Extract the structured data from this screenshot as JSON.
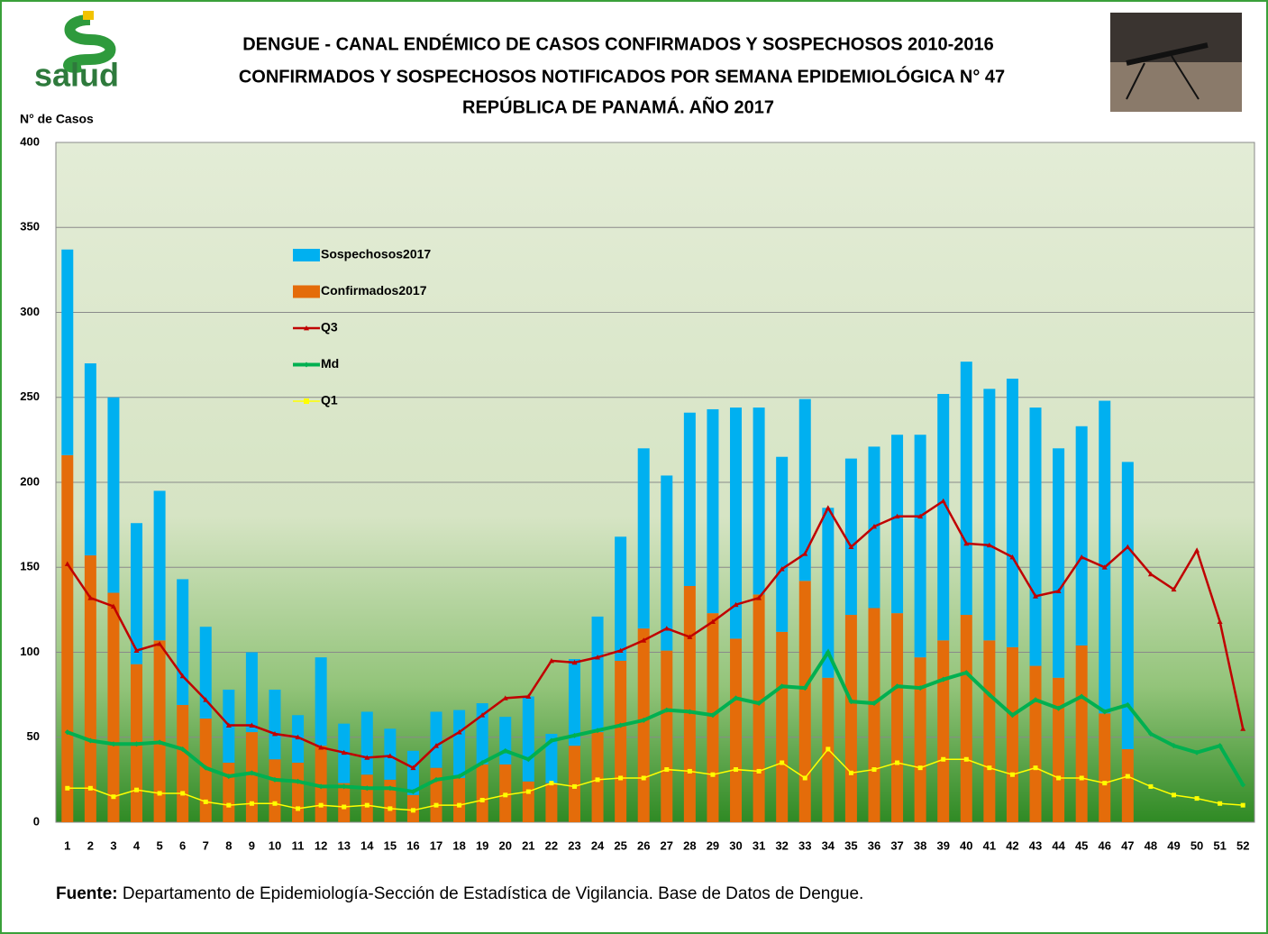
{
  "logo_text": "salud",
  "chart_data": {
    "type": "bar",
    "title": [
      "DENGUE - CANAL ENDÉMICO DE CASOS CONFIRMADOS Y SOSPECHOSOS 2010-2016",
      "CONFIRMADOS Y SOSPECHOSOS NOTIFICADOS POR SEMANA EPIDEMIOLÓGICA N° 47",
      "REPÚBLICA DE PANAMÁ. AÑO 2017"
    ],
    "y_label": "N° de Casos",
    "source_label": "Fuente:",
    "source": "Departamento de Epidemiología-Sección de Estadística de Vigilancia. Base de Datos de Dengue.",
    "categories": [
      "1",
      "2",
      "3",
      "4",
      "5",
      "6",
      "7",
      "8",
      "9",
      "10",
      "11",
      "12",
      "13",
      "14",
      "15",
      "16",
      "17",
      "18",
      "19",
      "20",
      "21",
      "22",
      "23",
      "24",
      "25",
      "26",
      "27",
      "28",
      "29",
      "30",
      "31",
      "32",
      "33",
      "34",
      "35",
      "36",
      "37",
      "38",
      "39",
      "40",
      "41",
      "42",
      "43",
      "44",
      "45",
      "46",
      "47",
      "48",
      "49",
      "50",
      "51",
      "52"
    ],
    "ylim": [
      0,
      400
    ],
    "yticks": [
      0,
      50,
      100,
      150,
      200,
      250,
      300,
      350,
      400
    ],
    "grid": true,
    "series": [
      {
        "name": "Confirmados2017",
        "kind": "bar",
        "color": "#e46c0a",
        "values": [
          216,
          157,
          135,
          93,
          107,
          69,
          61,
          35,
          53,
          37,
          35,
          45,
          23,
          28,
          25,
          16,
          32,
          26,
          34,
          34,
          24,
          23,
          45,
          53,
          95,
          114,
          101,
          139,
          123,
          108,
          134,
          112,
          142,
          85,
          122,
          126,
          123,
          97,
          107,
          122,
          107,
          103,
          92,
          85,
          104,
          64,
          43,
          null,
          null,
          null,
          null,
          null
        ]
      },
      {
        "name": "Sospechosos2017",
        "kind": "bar",
        "color": "#00b0f0",
        "values": [
          121,
          113,
          115,
          83,
          88,
          74,
          54,
          43,
          47,
          41,
          28,
          52,
          35,
          37,
          30,
          26,
          33,
          40,
          36,
          28,
          50,
          29,
          51,
          68,
          73,
          106,
          103,
          102,
          120,
          136,
          110,
          103,
          107,
          100,
          92,
          95,
          105,
          131,
          145,
          149,
          148,
          158,
          152,
          135,
          129,
          184,
          169,
          null,
          null,
          null,
          null,
          null
        ]
      },
      {
        "name": "Q3",
        "kind": "line",
        "marker": "triangle",
        "color": "#c00000",
        "values": [
          152,
          132,
          127,
          101,
          105,
          86,
          72,
          57,
          57,
          52,
          50,
          44,
          41,
          38,
          39,
          32,
          45,
          53,
          63,
          73,
          74,
          95,
          94,
          97,
          101,
          107,
          114,
          109,
          118,
          128,
          132,
          149,
          158,
          185,
          162,
          174,
          180,
          180,
          189,
          164,
          163,
          156,
          133,
          136,
          156,
          150,
          162,
          146,
          137,
          160,
          118,
          55
        ]
      },
      {
        "name": "Md",
        "kind": "line",
        "marker": "diamond",
        "color": "#00b050",
        "values": [
          53,
          48,
          46,
          46,
          47,
          43,
          32,
          27,
          29,
          25,
          24,
          21,
          21,
          20,
          20,
          18,
          25,
          27,
          35,
          42,
          37,
          48,
          51,
          54,
          57,
          60,
          66,
          65,
          63,
          73,
          70,
          80,
          79,
          100,
          71,
          70,
          80,
          79,
          84,
          88,
          75,
          63,
          72,
          67,
          74,
          65,
          69,
          52,
          45,
          41,
          45,
          22
        ]
      },
      {
        "name": "Q1",
        "kind": "line",
        "marker": "square",
        "color": "#ffff00",
        "values": [
          20,
          20,
          15,
          19,
          17,
          17,
          12,
          10,
          11,
          11,
          8,
          10,
          9,
          10,
          8,
          7,
          10,
          10,
          13,
          16,
          18,
          23,
          21,
          25,
          26,
          26,
          31,
          30,
          28,
          31,
          30,
          35,
          26,
          43,
          29,
          31,
          35,
          32,
          37,
          37,
          32,
          28,
          32,
          26,
          26,
          23,
          27,
          21,
          16,
          14,
          11,
          10
        ]
      }
    ],
    "legend_order": [
      1,
      0,
      2,
      3,
      4
    ]
  }
}
